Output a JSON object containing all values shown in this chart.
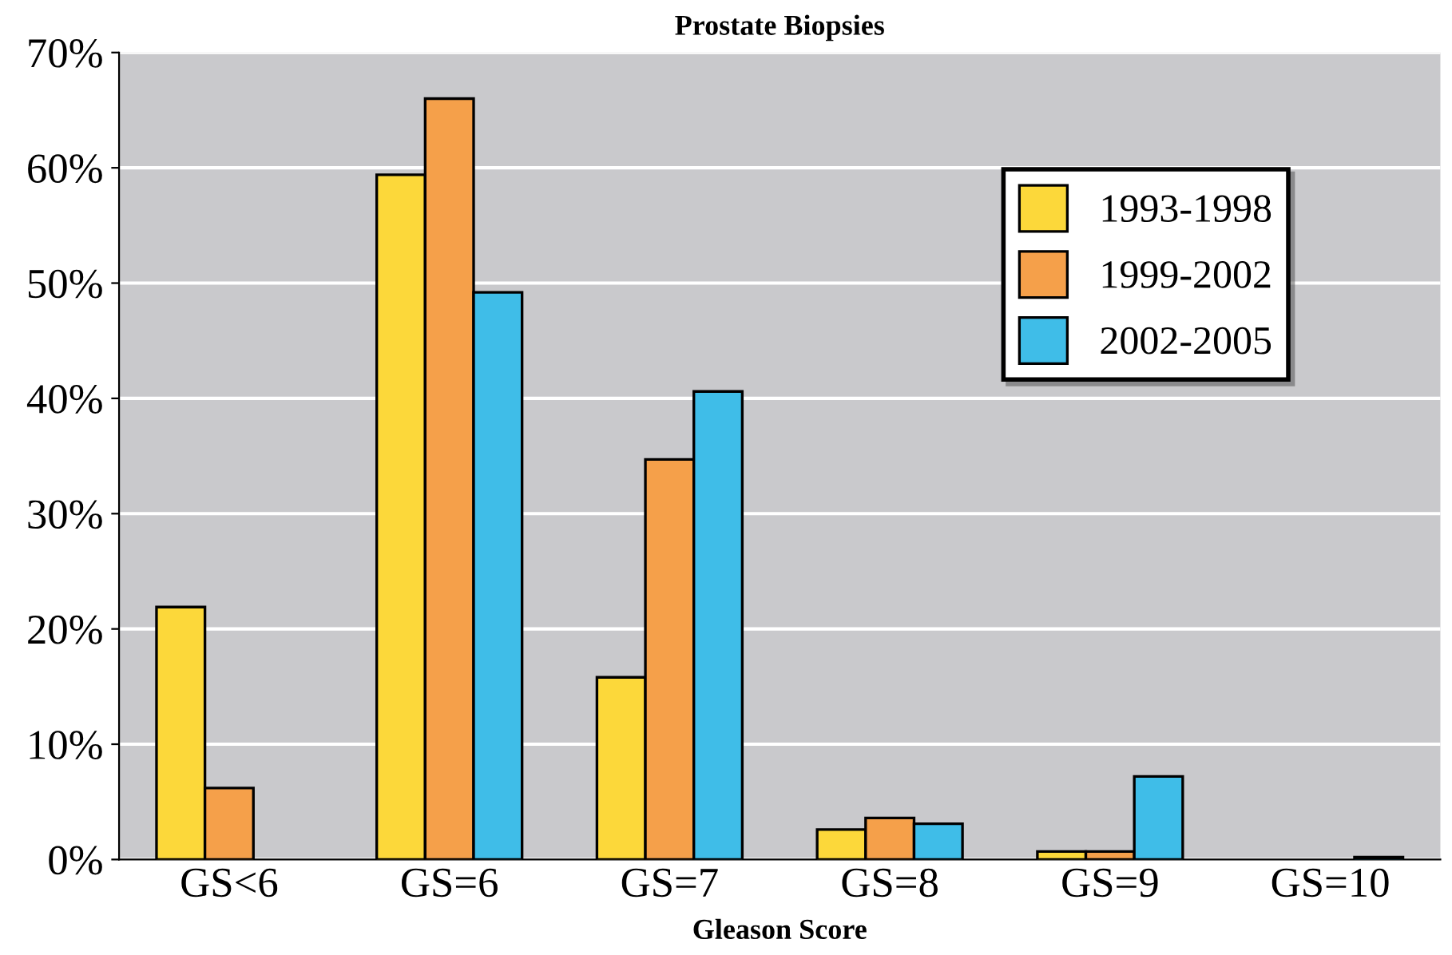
{
  "chart_data": {
    "type": "bar",
    "title": "Prostate Biopsies",
    "xlabel": "Gleason Score",
    "categories": [
      "GS<6",
      "GS=6",
      "GS=7",
      "GS=8",
      "GS=9",
      "GS=10"
    ],
    "series": [
      {
        "name": "1993-1998",
        "color": "#fcd83a",
        "values": [
          21.9,
          59.4,
          15.8,
          2.6,
          0.7,
          null
        ]
      },
      {
        "name": "1999-2002",
        "color": "#f5a04a",
        "values": [
          6.2,
          66.0,
          34.7,
          3.6,
          0.7,
          null
        ]
      },
      {
        "name": "2002-2005",
        "color": "#3fbde8",
        "values": [
          null,
          49.2,
          40.6,
          3.1,
          7.2,
          0.2
        ]
      }
    ],
    "ylim": [
      0,
      70
    ],
    "yticks": [
      {
        "value": 0,
        "label": "0%"
      },
      {
        "value": 10,
        "label": "10%"
      },
      {
        "value": 20,
        "label": "20%"
      },
      {
        "value": 30,
        "label": "30%"
      },
      {
        "value": 40,
        "label": "40%"
      },
      {
        "value": 50,
        "label": "50%"
      },
      {
        "value": 60,
        "label": "60%"
      },
      {
        "value": 70,
        "label": "70%"
      }
    ],
    "grid": "y",
    "legend": "top right"
  }
}
